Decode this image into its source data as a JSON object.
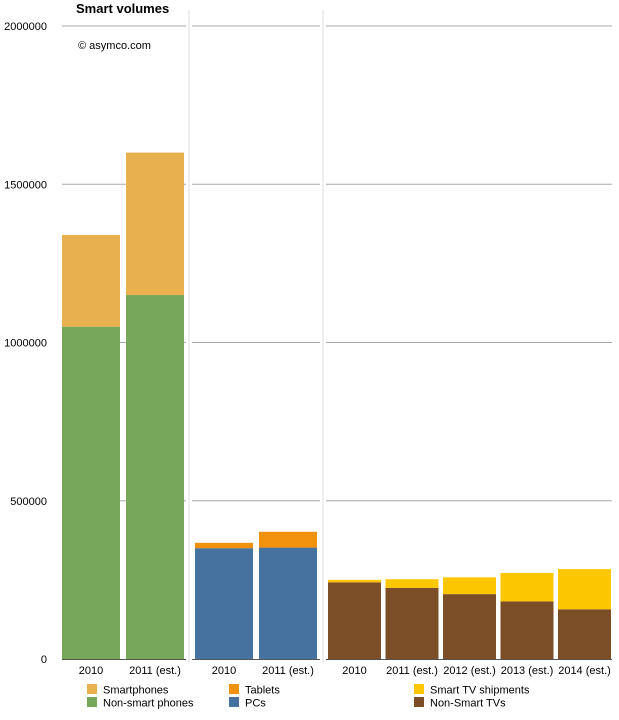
{
  "chart_data": {
    "type": "bar",
    "stacked": true,
    "title": "Smart volumes",
    "subtitle": "© asymco.com",
    "xlabel": "",
    "ylabel": "",
    "ylim": [
      0,
      2000000
    ],
    "yticks": [
      "0",
      "500000",
      "1000000",
      "1500000",
      "2000000"
    ],
    "ytick_values": [
      0,
      500000,
      1000000,
      1500000,
      2000000
    ],
    "grid": true,
    "colors": {
      "smartphones": "#e8b04f",
      "non_smart_phones": "#76a75a",
      "tablets": "#f0920e",
      "pcs": "#45729e",
      "smart_tv": "#fcc700",
      "non_smart_tv": "#7b4e28",
      "grid": "#a8a8a8"
    },
    "groups": [
      {
        "categories": [
          "2010",
          "2011 (est.)"
        ],
        "series": [
          {
            "name": "Non-smart phones",
            "color_key": "non_smart_phones",
            "values": [
              1050000,
              1150000
            ]
          },
          {
            "name": "Smartphones",
            "color_key": "smartphones",
            "values": [
              290000,
              450000
            ]
          }
        ]
      },
      {
        "categories": [
          "2010",
          "2011 (est.)"
        ],
        "series": [
          {
            "name": "PCs",
            "color_key": "pcs",
            "values": [
              350000,
              352000
            ]
          },
          {
            "name": "Tablets",
            "color_key": "tablets",
            "values": [
              17000,
              50000
            ]
          }
        ]
      },
      {
        "categories": [
          "2010",
          "2011 (est.)",
          "2012 (est.)",
          "2013 (est.)",
          "2014 (est.)"
        ],
        "series": [
          {
            "name": "Non-Smart TVs",
            "color_key": "non_smart_tv",
            "values": [
              242000,
              225000,
              205000,
              182000,
              157000
            ]
          },
          {
            "name": "Smart TV shipments",
            "color_key": "smart_tv",
            "values": [
              8000,
              27000,
              53000,
              90000,
              127000
            ]
          }
        ]
      }
    ],
    "legend": {
      "placement": "bottom",
      "columns": [
        [
          {
            "label": "Smartphones",
            "color_key": "smartphones"
          },
          {
            "label": "Non-smart phones",
            "color_key": "non_smart_phones"
          }
        ],
        [
          {
            "label": "Tablets",
            "color_key": "tablets"
          },
          {
            "label": "PCs",
            "color_key": "pcs"
          }
        ],
        [
          {
            "label": "Smart TV shipments",
            "color_key": "smart_tv"
          },
          {
            "label": "Non-Smart TVs",
            "color_key": "non_smart_tv"
          }
        ]
      ]
    }
  }
}
